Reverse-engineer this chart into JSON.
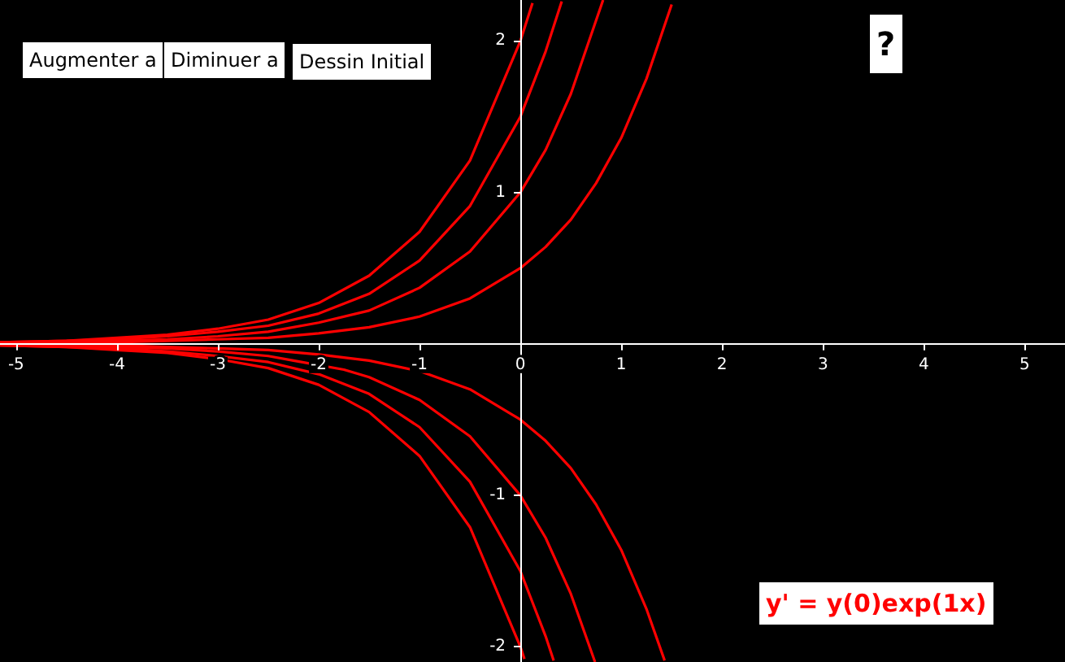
{
  "chart_data": {
    "type": "line",
    "annotations": [
      "Augmenter a",
      "Diminuer a",
      "Dessin Initial",
      "?",
      "y' = y(0)exp(1x)"
    ],
    "xlim": [
      -5.16,
      5.4
    ],
    "ylim": [
      -2.1,
      2.27
    ],
    "xticks": [
      -5,
      -4,
      -3,
      -2,
      -1,
      0,
      1,
      2,
      3,
      4,
      5
    ],
    "yticks": [
      -2,
      -1,
      1,
      2
    ],
    "marker": "none",
    "line_style": "solid",
    "series": [
      {
        "color": "#ff0000",
        "x": [
          -5.16,
          -4.5,
          -4,
          -3.5,
          -3,
          -2.5,
          -2,
          -1.5,
          -1,
          -0.5,
          0,
          0.12
        ],
        "values": [
          0.01,
          0.02,
          0.04,
          0.06,
          0.1,
          0.16,
          0.27,
          0.45,
          0.74,
          1.21,
          2,
          2.25
        ]
      },
      {
        "color": "#ff0000",
        "x": [
          -5.16,
          -4.5,
          -4,
          -3.5,
          -3,
          -2.5,
          -2,
          -1.5,
          -1,
          -0.5,
          0,
          0.25,
          0.41
        ],
        "values": [
          0.01,
          0.02,
          0.03,
          0.05,
          0.08,
          0.12,
          0.2,
          0.33,
          0.55,
          0.91,
          1.5,
          1.93,
          2.26
        ]
      },
      {
        "color": "#ff0000",
        "x": [
          -5.16,
          -4.5,
          -4,
          -3.5,
          -3,
          -2.5,
          -2,
          -1.5,
          -1,
          -0.5,
          0,
          0.25,
          0.5,
          0.82
        ],
        "values": [
          0.01,
          0.01,
          0.02,
          0.03,
          0.05,
          0.08,
          0.14,
          0.22,
          0.37,
          0.61,
          1,
          1.28,
          1.65,
          2.27
        ]
      },
      {
        "color": "#ff0000",
        "x": [
          -5.16,
          -4.5,
          -4,
          -3.5,
          -3,
          -2.5,
          -2,
          -1.5,
          -1,
          -0.5,
          0,
          0.25,
          0.5,
          0.75,
          1,
          1.25,
          1.5
        ],
        "values": [
          0,
          0.01,
          0.01,
          0.02,
          0.03,
          0.04,
          0.07,
          0.11,
          0.18,
          0.3,
          0.5,
          0.64,
          0.82,
          1.06,
          1.36,
          1.75,
          2.24
        ]
      },
      {
        "color": "#ff0000",
        "x": [
          -5.16,
          -4.5,
          -4,
          -3.5,
          -3,
          -2.5,
          -2,
          -1.5,
          -1,
          -0.5,
          0,
          0.25,
          0.5,
          0.75,
          1,
          1.25,
          1.43
        ],
        "values": [
          0,
          -0.01,
          -0.01,
          -0.02,
          -0.03,
          -0.04,
          -0.07,
          -0.11,
          -0.18,
          -0.3,
          -0.5,
          -0.64,
          -0.82,
          -1.06,
          -1.36,
          -1.75,
          -2.09
        ]
      },
      {
        "color": "#ff0000",
        "x": [
          -5.16,
          -4.5,
          -4,
          -3.5,
          -3,
          -2.5,
          -2.25,
          -1.75,
          -1.5,
          -1,
          -0.5,
          0,
          0.25,
          0.5,
          0.74
        ],
        "values": [
          -0.01,
          -0.01,
          -0.02,
          -0.03,
          -0.05,
          -0.08,
          -0.11,
          -0.17,
          -0.22,
          -0.37,
          -0.61,
          -1,
          -1.28,
          -1.65,
          -2.1
        ]
      },
      {
        "color": "#ff0000",
        "x": [
          -5.16,
          -4.5,
          -4,
          -3.5,
          -3,
          -2.5,
          -2,
          -1.5,
          -1,
          -0.5,
          0,
          0.25,
          0.33
        ],
        "values": [
          -0.01,
          -0.02,
          -0.03,
          -0.05,
          -0.08,
          -0.12,
          -0.2,
          -0.33,
          -0.55,
          -0.91,
          -1.5,
          -1.93,
          -2.09
        ]
      },
      {
        "color": "#ff0000",
        "x": [
          -5.16,
          -4.5,
          -4,
          -3.5,
          -3,
          -2.5,
          -2,
          -1.5,
          -1,
          -0.5,
          0,
          0.04
        ],
        "values": [
          -0.01,
          -0.02,
          -0.04,
          -0.06,
          -0.1,
          -0.16,
          -0.27,
          -0.45,
          -0.74,
          -1.21,
          -2,
          -2.08
        ]
      }
    ]
  }
}
